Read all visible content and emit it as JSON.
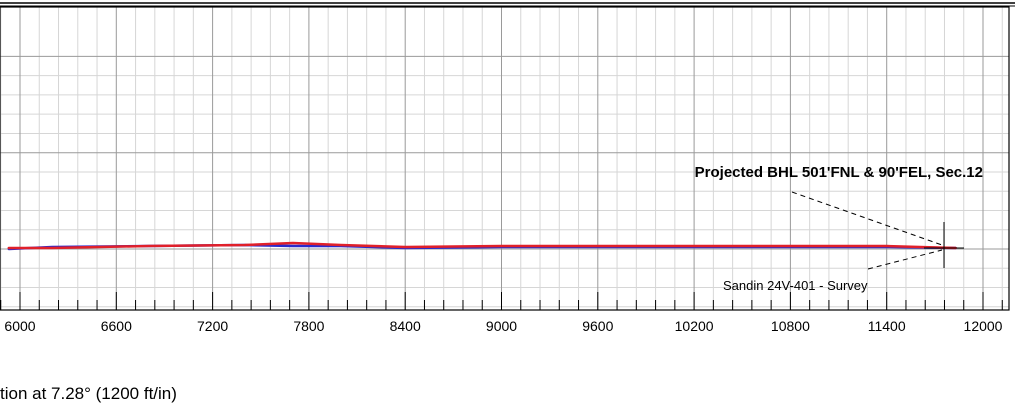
{
  "chart_data": {
    "type": "line",
    "title": "",
    "xlabel": "",
    "ylabel": "",
    "x_ticks": [
      6000,
      6600,
      7200,
      7800,
      8400,
      9000,
      9600,
      10200,
      10800,
      11400,
      12000
    ],
    "xlim": [
      5930,
      12050
    ],
    "grid": true,
    "series": [
      {
        "color": "#2a2acc",
        "x": [
          5930,
          6200,
          6800,
          7400,
          7700,
          8000,
          8400,
          9000,
          9600,
          10200,
          10800,
          11400,
          11830
        ],
        "y": [
          0,
          2,
          3,
          4,
          3,
          3,
          1,
          2,
          2,
          2,
          2,
          2,
          1
        ]
      },
      {
        "color": "#e0202a",
        "x": [
          5930,
          6200,
          6800,
          7400,
          7700,
          8000,
          8400,
          9000,
          9600,
          10200,
          10800,
          11400,
          11830
        ],
        "y": [
          1,
          1,
          3,
          4,
          6,
          4,
          2,
          3,
          3,
          3,
          3,
          3,
          1
        ]
      }
    ],
    "annotations": [
      {
        "text": "Projected BHL 501'FNL & 90'FEL, Sec.12",
        "style": "bold"
      },
      {
        "text": "Sandin 24V-401 - Survey",
        "style": "normal"
      }
    ]
  },
  "caption": "tion at 7.28° (1200 ft/in)"
}
